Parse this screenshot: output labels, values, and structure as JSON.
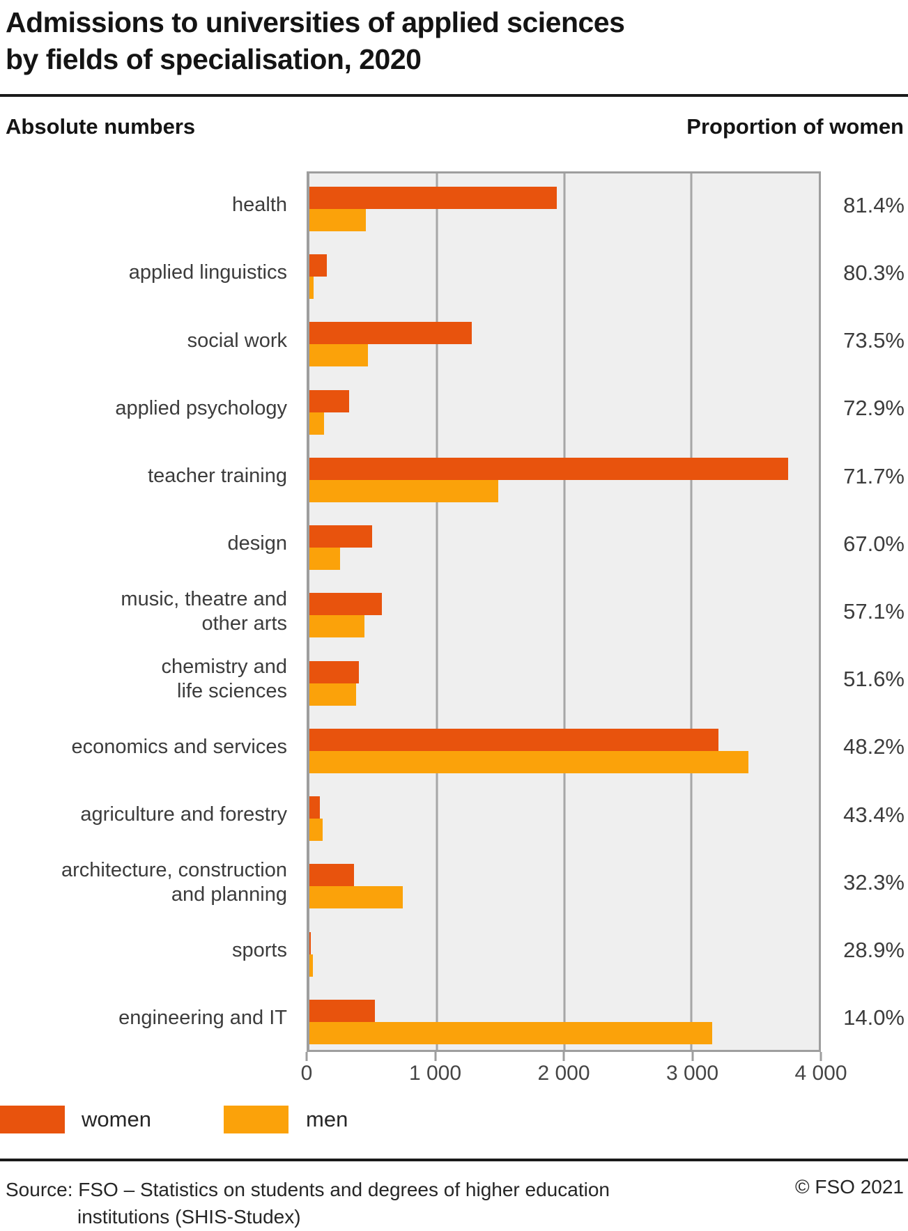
{
  "title": {
    "line1": "Admissions to universities of applied sciences",
    "line2": "by fields of specialisation, 2020"
  },
  "headers": {
    "left": "Absolute numbers",
    "right": "Proportion of women"
  },
  "legend": [
    {
      "label": "women",
      "color": "#e8530d"
    },
    {
      "label": "men",
      "color": "#fba20a"
    }
  ],
  "footer": {
    "source_line1": "Source: FSO – Statistics on students and degrees of higher education",
    "source_line2": "institutions (SHIS-Studex)",
    "copyright": "© FSO 2021"
  },
  "chart_data": {
    "type": "bar",
    "orientation": "horizontal",
    "title": "Admissions to universities of applied sciences by fields of specialisation, 2020",
    "xlabel": "Absolute numbers",
    "right_column_label": "Proportion of women",
    "xlim": [
      0,
      4000
    ],
    "x_ticks": [
      "0",
      "1 000",
      "2 000",
      "3 000",
      "4 000"
    ],
    "x_tick_values": [
      0,
      1000,
      2000,
      3000,
      4000
    ],
    "grid": "vertical gridlines at 1000, 2000, 3000",
    "legend_position": "bottom-left",
    "plot_background": "#efefef",
    "categories": [
      "health",
      "applied linguistics",
      "social work",
      "applied psychology",
      "teacher training",
      "design",
      "music, theatre and other arts",
      "chemistry and life sciences",
      "economics and services",
      "agriculture and forestry",
      "architecture, construction and planning",
      "sports",
      "engineering and IT"
    ],
    "category_label_lines": [
      [
        "health"
      ],
      [
        "applied linguistics"
      ],
      [
        "social work"
      ],
      [
        "applied psychology"
      ],
      [
        "teacher training"
      ],
      [
        "design"
      ],
      [
        "music, theatre and",
        "other arts"
      ],
      [
        "chemistry and",
        "life sciences"
      ],
      [
        "economics and services"
      ],
      [
        "agriculture and forestry"
      ],
      [
        "architecture, construction",
        "and planning"
      ],
      [
        "sports"
      ],
      [
        "engineering and IT"
      ]
    ],
    "series": [
      {
        "name": "women",
        "color": "#e8530d",
        "values": [
          1945,
          135,
          1275,
          310,
          3760,
          490,
          570,
          390,
          3210,
          80,
          350,
          11,
          515
        ]
      },
      {
        "name": "men",
        "color": "#fba20a",
        "values": [
          445,
          33,
          460,
          115,
          1485,
          240,
          430,
          365,
          3445,
          105,
          735,
          27,
          3165
        ]
      }
    ],
    "proportion_of_women_labels": [
      "81.4%",
      "80.3%",
      "73.5%",
      "72.9%",
      "71.7%",
      "67.0%",
      "57.1%",
      "51.6%",
      "48.2%",
      "43.4%",
      "32.3%",
      "28.9%",
      "14.0%"
    ]
  }
}
